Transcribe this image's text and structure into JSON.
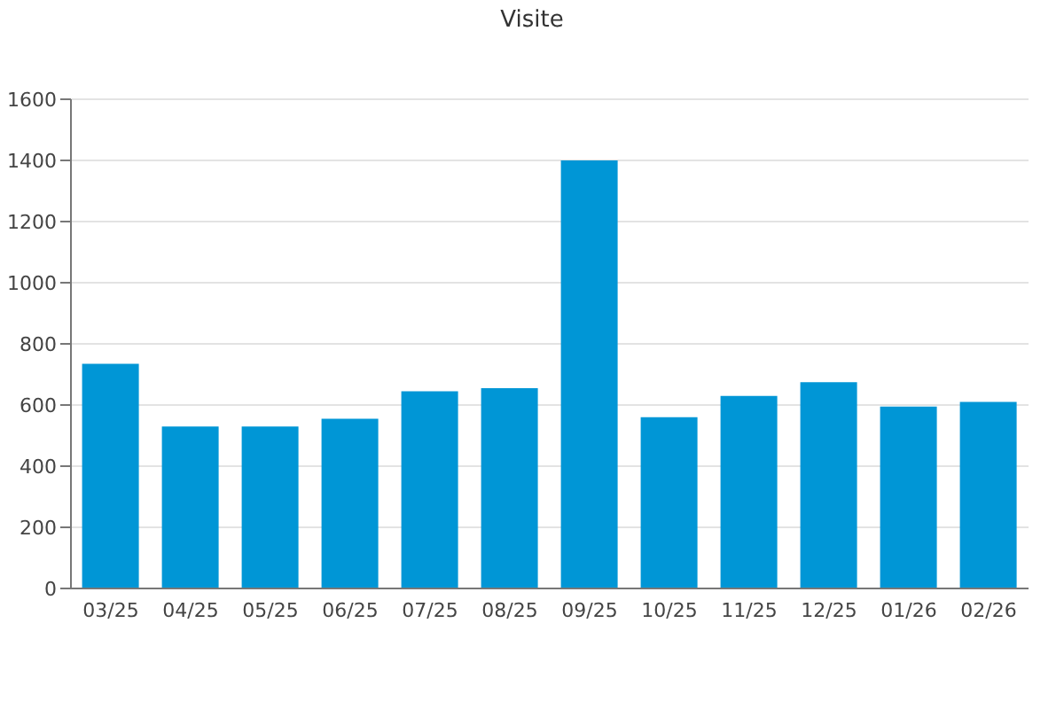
{
  "chart_data": {
    "type": "bar",
    "title": "Visite",
    "categories": [
      "03/25",
      "04/25",
      "05/25",
      "06/25",
      "07/25",
      "08/25",
      "09/25",
      "10/25",
      "11/25",
      "12/25",
      "01/26",
      "02/26"
    ],
    "values": [
      735,
      530,
      530,
      555,
      645,
      655,
      1400,
      560,
      630,
      675,
      595,
      610
    ],
    "color": "#0096d6",
    "ylim": [
      0,
      1600
    ],
    "yticks": [
      0,
      200,
      400,
      600,
      800,
      1000,
      1200,
      1400,
      1600
    ],
    "grid": "y",
    "legend": false
  }
}
